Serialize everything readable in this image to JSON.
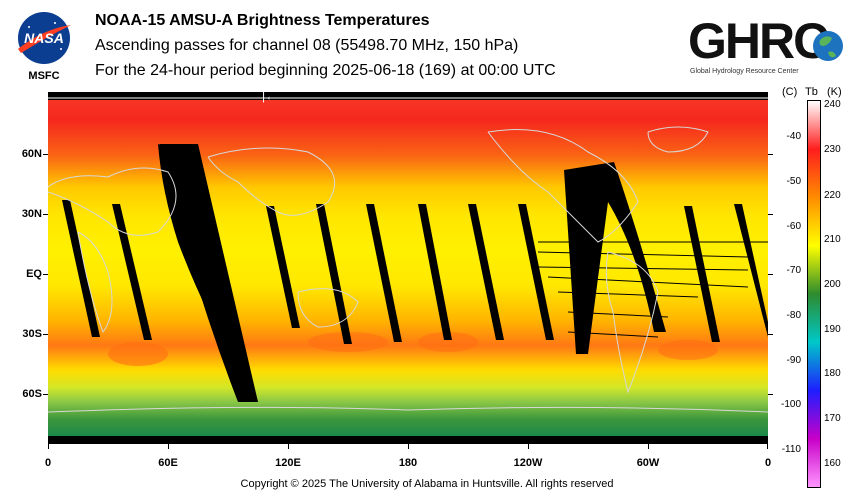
{
  "header": {
    "title": "NOAA-15 AMSU-A Brightness Temperatures",
    "subtitle": "Ascending passes for channel 08 (55498.70 MHz, 150 hPa)",
    "period": "For the 24-hour period beginning 2025-06-18 (169) at 00:00 UTC"
  },
  "logos": {
    "nasa_text": "NASA",
    "msfc_text": "MSFC",
    "ghrc_text": "GHRC",
    "ghrc_subtext": "Global Hydrology Resource Center"
  },
  "map": {
    "orbit_arrow": "|←",
    "lat_labels": [
      "60N",
      "30N",
      "EQ",
      "30S",
      "60S"
    ],
    "lon_labels": [
      "0",
      "60E",
      "120E",
      "180",
      "120W",
      "60W",
      "0"
    ]
  },
  "colorbar": {
    "title_c": "(C)",
    "title_tb": "Tb",
    "title_k": "(K)",
    "celsius_labels": [
      "-40",
      "-50",
      "-60",
      "-70",
      "-80",
      "-90",
      "-100",
      "-110"
    ],
    "kelvin_labels": [
      "240",
      "230",
      "220",
      "210",
      "200",
      "190",
      "180",
      "170",
      "160"
    ],
    "colors": [
      "#ffffff",
      "#ff1e1e",
      "#ff8c00",
      "#ffff00",
      "#2e8b2e",
      "#00c8c8",
      "#1e1eff",
      "#c800c8",
      "#ff96ff"
    ]
  },
  "footer": {
    "copyright": "Copyright © 2025 The University of Alabama in Huntsville.  All rights reserved"
  }
}
